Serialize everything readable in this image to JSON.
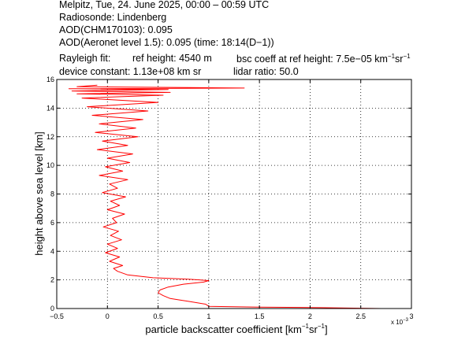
{
  "header": {
    "line1": "Melpitz, Tue, 24. June 2025, 00:00 – 00:59 UTC",
    "line2": "Radiosonde: Lindenberg",
    "line3": "AOD(CHM170103): 0.095",
    "line4": "AOD(Aeronet level 1.5): 0.095   (time: 18:14(D−1))",
    "rayleigh_label": "Rayleigh fit:",
    "ref_height": "ref height: 4540 m",
    "bsc_coeff_prefix": "bsc coeff at ref height: 7.5e−05 km",
    "bsc_coeff_exp1": "−1",
    "bsc_coeff_mid": "sr",
    "bsc_coeff_exp2": "−1",
    "device_constant": "device constant: 1.13e+08 km sr",
    "lidar_ratio": "lidar ratio: 50.0"
  },
  "chart_data": {
    "type": "line",
    "xlabel_prefix": "particle backscatter coefficient [km",
    "xlabel_exp1": "−1",
    "xlabel_mid": "sr",
    "xlabel_exp2": "−1",
    "xlabel_suffix": "]",
    "ylabel": "height above sea level [km]",
    "x_multiplier": "x 10",
    "x_multiplier_exp": "−3",
    "xlim": [
      -0.5,
      3
    ],
    "ylim": [
      0,
      16
    ],
    "xticks": [
      -0.5,
      0,
      0.5,
      1,
      1.5,
      2,
      2.5,
      3
    ],
    "xtick_labels": [
      "−0.5",
      "0",
      "0.5",
      "1",
      "1.5",
      "2",
      "2.5",
      "3"
    ],
    "yticks": [
      0,
      2,
      4,
      6,
      8,
      10,
      12,
      14,
      16
    ],
    "ytick_labels": [
      "0",
      "2",
      "4",
      "6",
      "8",
      "10",
      "12",
      "14",
      "16"
    ],
    "grid": true,
    "series": [
      {
        "color": "#ff0000",
        "x": [
          2.7,
          2.1,
          1.5,
          1.0,
          0.97,
          0.8,
          0.62,
          0.55,
          0.5,
          0.52,
          0.6,
          0.75,
          0.95,
          1.0,
          0.8,
          0.45,
          0.2,
          0.1,
          0.06,
          0.15,
          0.02,
          0.12,
          -0.02,
          0.1,
          0.0,
          0.14,
          0.03,
          0.11,
          -0.04,
          0.09,
          0.05,
          0.17,
          0.0,
          0.12,
          0.03,
          0.18,
          -0.05,
          0.1,
          0.02,
          0.2,
          -0.08,
          0.15,
          -0.02,
          0.22,
          0.0,
          0.25,
          -0.1,
          0.2,
          -0.05,
          0.3,
          -0.12,
          0.28,
          -0.08,
          0.35,
          -0.15,
          0.4,
          -0.2,
          0.5,
          -0.25,
          0.55,
          -0.3,
          0.62,
          -0.35,
          0.6,
          -0.38,
          1.35,
          -0.3,
          -0.1
        ],
        "y": [
          0.0,
          0.06,
          0.1,
          0.15,
          0.3,
          0.5,
          0.7,
          0.9,
          1.1,
          1.3,
          1.5,
          1.7,
          1.85,
          1.95,
          2.05,
          2.15,
          2.35,
          2.6,
          2.8,
          3.0,
          3.3,
          3.6,
          3.9,
          4.2,
          4.5,
          4.8,
          5.1,
          5.4,
          5.7,
          6.0,
          6.3,
          6.6,
          6.9,
          7.2,
          7.5,
          7.8,
          8.1,
          8.4,
          8.7,
          9.0,
          9.3,
          9.6,
          9.9,
          10.2,
          10.5,
          10.8,
          11.1,
          11.4,
          11.7,
          12.0,
          12.3,
          12.6,
          12.9,
          13.2,
          13.5,
          13.8,
          14.1,
          14.4,
          14.7,
          14.9,
          15.0,
          15.1,
          15.2,
          15.3,
          15.35,
          15.4,
          15.5,
          15.6
        ]
      }
    ]
  }
}
